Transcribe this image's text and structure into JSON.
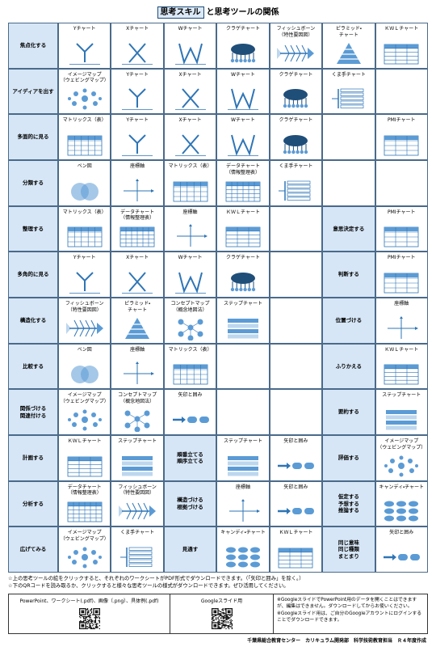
{
  "header": {
    "title_box": "思考スキル",
    "title_rest": "と思考ツールの関係"
  },
  "table": {
    "rows": [
      {
        "skill": "焦点化する",
        "cells": [
          "Yチャート",
          "Xチャート",
          "Wチャート",
          "クラゲチャート",
          "フィッシュボーン\n（特性要因図）",
          "ピラミッド・\nチャート",
          "ＫＷＬチャート"
        ]
      },
      {
        "skill": "アイディアを出す",
        "cells": [
          "イメージマップ\n（ウェビングマップ）",
          "Yチャート",
          "Xチャート",
          "Wチャート",
          "クラゲチャート",
          "くま手チャート",
          null
        ]
      },
      {
        "skill": "多面的に見る",
        "cells": [
          "マトリックス（表）",
          "Yチャート",
          "Xチャート",
          "Wチャート",
          "クラゲチャート",
          null,
          "PMIチャート"
        ]
      },
      {
        "skill": "分類する",
        "cells": [
          "ベン図",
          "座標軸",
          "マトリックス（表）",
          "データチャート\n（情報整理表）",
          "くま手チャート",
          null,
          null
        ]
      },
      {
        "skill": "整理する",
        "cells": [
          "マトリックス（表）",
          "データチャート\n（情報整理表）",
          "座標軸",
          "ＫＷＬチャート",
          null,
          {
            "skill": "意思決定する"
          },
          "PMIチャート"
        ]
      },
      {
        "skill": "多角的に見る",
        "cells": [
          "Yチャート",
          "Xチャート",
          "Wチャート",
          "クラゲチャート",
          null,
          {
            "skill": "判断する"
          },
          "PMIチャート"
        ]
      },
      {
        "skill": "構造化する",
        "cells": [
          "フィッシュボーン\n（特性要因図）",
          "ピラミッド・\nチャート",
          "コンセプトマップ\n（概念地図法）",
          "ステップチャート",
          null,
          {
            "skill": "位置づける"
          },
          "座標軸"
        ]
      },
      {
        "skill": "比較する",
        "cells": [
          "ベン図",
          "座標軸",
          "マトリックス（表）",
          null,
          null,
          {
            "skill": "ふりかえる"
          },
          "ＫＷＬチャート"
        ]
      },
      {
        "skill": "関係づける\n関連付ける",
        "cells": [
          "イメージマップ\n（ウェビングマップ）",
          "コンセプトマップ\n（概念地図法）",
          "矢印と囲み",
          null,
          null,
          {
            "skill": "要約する"
          },
          "ステップチャート"
        ]
      },
      {
        "skill": "計画する",
        "cells": [
          "ＫＷＬチャート",
          "ステップチャート",
          {
            "skill": "順番立てる\n順序立てる"
          },
          "ステップチャート",
          "矢印と囲み",
          {
            "skill": "評価する"
          },
          "イメージマップ\n（ウェビングマップ）"
        ]
      },
      {
        "skill": "分析する",
        "cells": [
          "データチャート\n（情報整理表）",
          "フィッシュボーン\n（特性要因図）",
          {
            "skill": "構造づける\n根拠づける"
          },
          "座標軸",
          "矢印と囲み",
          {
            "skill": "仮定する\n予想する\n推論する"
          },
          "キャンディ・チャート"
        ]
      },
      {
        "skill": "広げてみる",
        "cells": [
          "イメージマップ\n（ウェビングマップ）",
          "くま手チャート",
          {
            "skill": "見通す"
          },
          "キャンディ・チャート",
          "ＫＷＬチャート",
          {
            "skill": "同じ意味\n同じ種類\nまとまり"
          },
          "矢印と囲み"
        ]
      }
    ]
  },
  "notes": [
    "☆上の思考ツールの絵をクリックすると、それぞれのワークシートがPDF形式でダウンロードできます。（「矢印と囲み」を除く。）",
    "☆下のQRコードを読み取るか、クリックすると様々な思考ツールの様式がダウンロードできます。ぜひ活用してください。"
  ],
  "downloads": [
    "PowerPoint、ワークシート(.pdf)、画像（.png）、具体例(.pdf)",
    "Googleスライド用"
  ],
  "download_notes": [
    "※GoogleスライドでPowerPoint用のデータを開くことはできますが、編集はできません。ダウンロードしてからお使いください。",
    "※Googleスライド用は、ご自分のGoogleアカウントにログインすることでダウンロードできます。"
  ],
  "credit": "千葉県総合教育センター　カリキュラム開発部　科学技術教育担当　Ｒ４年度作成"
}
